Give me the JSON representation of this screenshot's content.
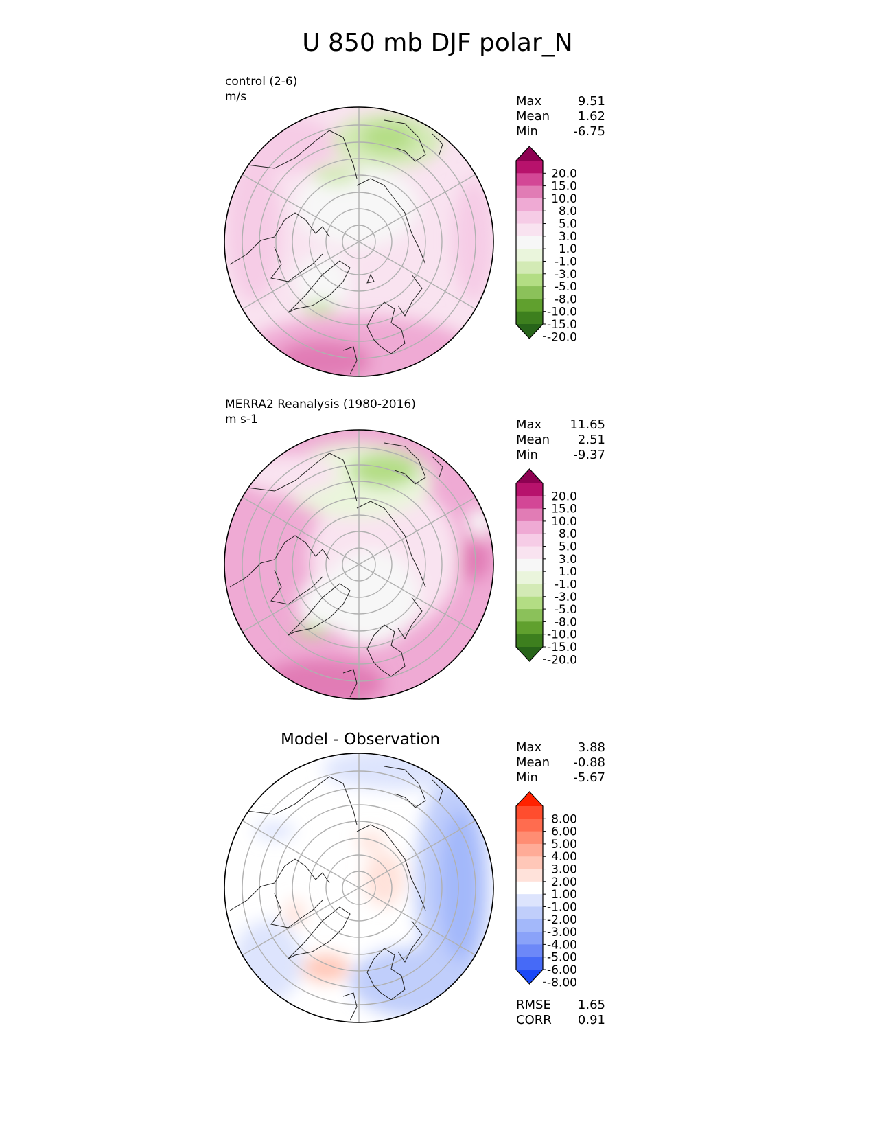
{
  "title": "U 850 mb DJF polar_N",
  "panels": [
    {
      "id": "control",
      "label_line1": "control (2-6)",
      "label_line2": "m/s",
      "stats": [
        {
          "label": "Max",
          "value": "9.51"
        },
        {
          "label": "Mean",
          "value": "1.62"
        },
        {
          "label": "Min",
          "value": "-6.75"
        }
      ],
      "colorbar": {
        "ticks": [
          "20.0",
          "15.0",
          "10.0",
          "8.0",
          "5.0",
          "3.0",
          "1.0",
          "-1.0",
          "-3.0",
          "-5.0",
          "-8.0",
          "-10.0",
          "-15.0",
          "-20.0"
        ],
        "colors": [
          "#8e0152",
          "#b7126c",
          "#d34796",
          "#e17cb5",
          "#efaad4",
          "#f6cce6",
          "#f9e3f0",
          "#f7f7f7",
          "#eaf5dc",
          "#d3eab5",
          "#b3dd84",
          "#8bc15a",
          "#60a02e",
          "#3d7f1e",
          "#276419"
        ]
      }
    },
    {
      "id": "reference",
      "label_line1": "MERRA2 Reanalysis (1980-2016)",
      "label_line2": "m s-1",
      "stats": [
        {
          "label": "Max",
          "value": "11.65"
        },
        {
          "label": "Mean",
          "value": "2.51"
        },
        {
          "label": "Min",
          "value": "-9.37"
        }
      ],
      "colorbar": {
        "ticks": [
          "20.0",
          "15.0",
          "10.0",
          "8.0",
          "5.0",
          "3.0",
          "1.0",
          "-1.0",
          "-3.0",
          "-5.0",
          "-8.0",
          "-10.0",
          "-15.0",
          "-20.0"
        ],
        "colors": [
          "#8e0152",
          "#b7126c",
          "#d34796",
          "#e17cb5",
          "#efaad4",
          "#f6cce6",
          "#f9e3f0",
          "#f7f7f7",
          "#eaf5dc",
          "#d3eab5",
          "#b3dd84",
          "#8bc15a",
          "#60a02e",
          "#3d7f1e",
          "#276419"
        ]
      }
    },
    {
      "id": "difference",
      "title": "Model - Observation",
      "stats": [
        {
          "label": "Max",
          "value": "3.88"
        },
        {
          "label": "Mean",
          "value": "-0.88"
        },
        {
          "label": "Min",
          "value": "-5.67"
        }
      ],
      "metrics": [
        {
          "label": "RMSE",
          "value": "1.65"
        },
        {
          "label": "CORR",
          "value": "0.91"
        }
      ],
      "colorbar": {
        "ticks": [
          "8.00",
          "6.00",
          "5.00",
          "4.00",
          "3.00",
          "2.00",
          "1.00",
          "-1.00",
          "-2.00",
          "-3.00",
          "-4.00",
          "-5.00",
          "-6.00",
          "-8.00"
        ],
        "colors": [
          "#ff2200",
          "#ff4d2e",
          "#ff6c4f",
          "#ff8d73",
          "#ffab97",
          "#ffc7b8",
          "#ffe2da",
          "#ffffff",
          "#dde4fd",
          "#c0cefb",
          "#a3b8fa",
          "#8aa2f9",
          "#6d88f8",
          "#466af7",
          "#1a48f6"
        ]
      }
    }
  ]
}
